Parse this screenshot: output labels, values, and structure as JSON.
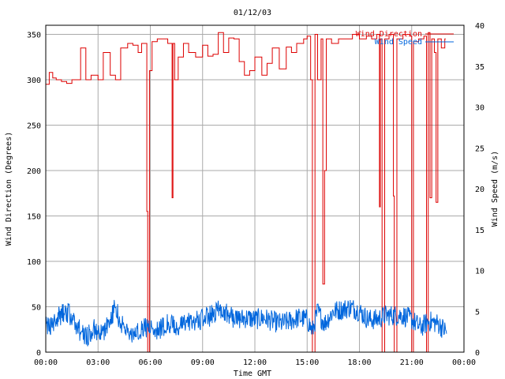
{
  "chart_data": {
    "type": "line",
    "title": "01/12/03",
    "xlabel": "Time GMT",
    "ylabel_left": "Wind Direction (Degrees)",
    "ylabel_right": "Wind Speed (m/s)",
    "x_ticks": [
      "00:00",
      "03:00",
      "06:00",
      "09:00",
      "12:00",
      "15:00",
      "18:00",
      "21:00",
      "00:00"
    ],
    "x_range_hours": [
      0,
      24
    ],
    "y_left_ticks": [
      "0",
      "50",
      "100",
      "150",
      "200",
      "250",
      "300",
      "350"
    ],
    "y_left_range": [
      0,
      360
    ],
    "y_right_ticks": [
      "0",
      "5",
      "10",
      "15",
      "20",
      "25",
      "30",
      "35",
      "40"
    ],
    "y_right_range": [
      0,
      40
    ],
    "grid": true,
    "legend_position": "top-right",
    "series": [
      {
        "name": "Wind Direction",
        "axis": "left",
        "color": "#dd0000",
        "step": true,
        "points": [
          [
            0.0,
            295
          ],
          [
            0.2,
            308
          ],
          [
            0.4,
            302
          ],
          [
            0.6,
            300
          ],
          [
            0.9,
            298
          ],
          [
            1.2,
            296
          ],
          [
            1.5,
            300
          ],
          [
            2.0,
            335
          ],
          [
            2.3,
            300
          ],
          [
            2.6,
            305
          ],
          [
            3.0,
            300
          ],
          [
            3.3,
            330
          ],
          [
            3.7,
            305
          ],
          [
            4.0,
            300
          ],
          [
            4.3,
            335
          ],
          [
            4.7,
            340
          ],
          [
            5.0,
            338
          ],
          [
            5.3,
            330
          ],
          [
            5.5,
            340
          ],
          [
            5.8,
            155
          ],
          [
            5.85,
            0
          ],
          [
            5.95,
            310
          ],
          [
            6.1,
            342
          ],
          [
            6.4,
            345
          ],
          [
            6.7,
            345
          ],
          [
            7.0,
            340
          ],
          [
            7.25,
            170
          ],
          [
            7.3,
            340
          ],
          [
            7.4,
            300
          ],
          [
            7.6,
            325
          ],
          [
            7.9,
            340
          ],
          [
            8.2,
            330
          ],
          [
            8.6,
            325
          ],
          [
            9.0,
            338
          ],
          [
            9.3,
            326
          ],
          [
            9.6,
            328
          ],
          [
            9.9,
            352
          ],
          [
            10.2,
            330
          ],
          [
            10.5,
            346
          ],
          [
            10.8,
            345
          ],
          [
            11.1,
            320
          ],
          [
            11.4,
            305
          ],
          [
            11.7,
            310
          ],
          [
            12.0,
            325
          ],
          [
            12.4,
            305
          ],
          [
            12.7,
            318
          ],
          [
            13.0,
            335
          ],
          [
            13.4,
            312
          ],
          [
            13.8,
            336
          ],
          [
            14.1,
            330
          ],
          [
            14.4,
            340
          ],
          [
            14.8,
            345
          ],
          [
            15.0,
            348
          ],
          [
            15.2,
            300
          ],
          [
            15.3,
            0
          ],
          [
            15.45,
            350
          ],
          [
            15.6,
            300
          ],
          [
            15.8,
            345
          ],
          [
            15.9,
            75
          ],
          [
            16.0,
            200
          ],
          [
            16.1,
            345
          ],
          [
            16.4,
            340
          ],
          [
            16.8,
            345
          ],
          [
            17.2,
            345
          ],
          [
            17.6,
            350
          ],
          [
            18.0,
            345
          ],
          [
            18.4,
            348
          ],
          [
            18.7,
            345
          ],
          [
            19.0,
            350
          ],
          [
            19.15,
            160
          ],
          [
            19.2,
            345
          ],
          [
            19.3,
            0
          ],
          [
            19.45,
            345
          ],
          [
            19.7,
            350
          ],
          [
            19.95,
            172
          ],
          [
            20.0,
            0
          ],
          [
            20.15,
            345
          ],
          [
            20.5,
            350
          ],
          [
            20.9,
            348
          ],
          [
            21.0,
            0
          ],
          [
            21.1,
            342
          ],
          [
            21.4,
            345
          ],
          [
            21.7,
            348
          ],
          [
            21.85,
            0
          ],
          [
            21.95,
            352
          ],
          [
            22.05,
            170
          ],
          [
            22.15,
            345
          ],
          [
            22.3,
            330
          ],
          [
            22.4,
            165
          ],
          [
            22.5,
            345
          ],
          [
            22.7,
            335
          ],
          [
            22.9,
            345
          ]
        ]
      },
      {
        "name": "Wind Speed",
        "axis": "right",
        "color": "#0066dd",
        "noise": true,
        "points": [
          [
            0.0,
            3.5
          ],
          [
            0.4,
            3.0
          ],
          [
            0.8,
            4.5
          ],
          [
            1.2,
            5.0
          ],
          [
            1.6,
            4.0
          ],
          [
            2.0,
            2.5
          ],
          [
            2.4,
            2.0
          ],
          [
            2.8,
            2.8
          ],
          [
            3.2,
            2.2
          ],
          [
            3.6,
            3.5
          ],
          [
            4.0,
            5.5
          ],
          [
            4.3,
            3.5
          ],
          [
            4.7,
            2.5
          ],
          [
            5.0,
            2.0
          ],
          [
            5.5,
            3.0
          ],
          [
            6.0,
            3.0
          ],
          [
            6.5,
            2.8
          ],
          [
            7.0,
            3.5
          ],
          [
            7.5,
            3.0
          ],
          [
            8.0,
            3.5
          ],
          [
            8.5,
            3.8
          ],
          [
            9.0,
            4.0
          ],
          [
            9.5,
            4.5
          ],
          [
            10.0,
            5.5
          ],
          [
            10.5,
            4.5
          ],
          [
            11.0,
            4.0
          ],
          [
            11.5,
            4.2
          ],
          [
            12.0,
            4.0
          ],
          [
            12.5,
            4.2
          ],
          [
            13.0,
            3.8
          ],
          [
            13.5,
            3.5
          ],
          [
            14.0,
            3.8
          ],
          [
            14.5,
            4.2
          ],
          [
            15.0,
            4.0
          ],
          [
            15.3,
            2.5
          ],
          [
            15.6,
            5.0
          ],
          [
            16.0,
            3.5
          ],
          [
            16.5,
            5.0
          ],
          [
            17.0,
            5.2
          ],
          [
            17.5,
            5.5
          ],
          [
            18.0,
            5.0
          ],
          [
            18.5,
            4.0
          ],
          [
            19.0,
            4.0
          ],
          [
            19.5,
            4.5
          ],
          [
            20.0,
            4.5
          ],
          [
            20.5,
            4.5
          ],
          [
            21.0,
            4.0
          ],
          [
            21.5,
            3.0
          ],
          [
            22.0,
            3.8
          ],
          [
            22.5,
            3.5
          ],
          [
            23.0,
            2.5
          ]
        ]
      }
    ]
  }
}
